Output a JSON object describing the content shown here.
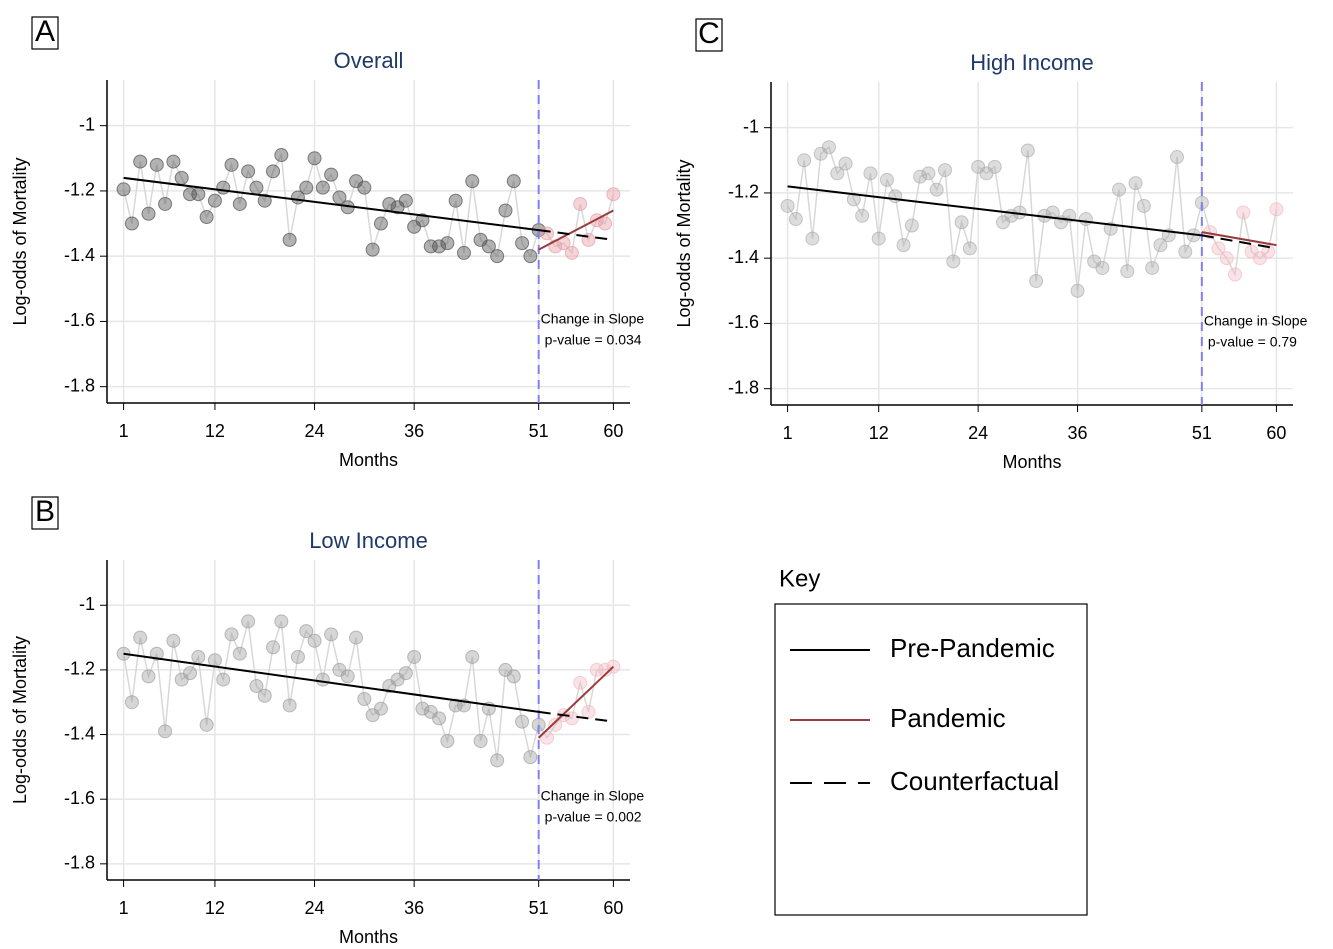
{
  "chart_data": [
    {
      "type": "line",
      "panel": "A",
      "title": "Overall",
      "x_label": "Months",
      "y_label": "Log-odds of Mortality",
      "xlim": [
        -1,
        62
      ],
      "ylim": [
        -1.85,
        -0.86
      ],
      "xticks": [
        1,
        12,
        24,
        36,
        51,
        60
      ],
      "yticks": [
        -1,
        -1.2,
        -1.4,
        -1.6,
        -1.8
      ],
      "grid": true,
      "interruption": 51,
      "point_color": "#555555",
      "pandemic_point_color": "#e8a0a8",
      "point_opacity": 0.45,
      "annotations": [
        "Change in Slope",
        "p-value = 0.034"
      ],
      "x": [
        1,
        2,
        3,
        4,
        5,
        6,
        7,
        8,
        9,
        10,
        11,
        12,
        13,
        14,
        15,
        16,
        17,
        18,
        19,
        20,
        21,
        22,
        23,
        24,
        25,
        26,
        27,
        28,
        29,
        30,
        31,
        32,
        33,
        34,
        35,
        36,
        37,
        38,
        39,
        40,
        41,
        42,
        43,
        44,
        45,
        46,
        47,
        48,
        49,
        50,
        51,
        52,
        53,
        54,
        55,
        56,
        57,
        58,
        59,
        60
      ],
      "values": [
        -1.195,
        -1.3,
        -1.11,
        -1.27,
        -1.12,
        -1.24,
        -1.11,
        -1.16,
        -1.21,
        -1.21,
        -1.28,
        -1.23,
        -1.19,
        -1.12,
        -1.24,
        -1.14,
        -1.19,
        -1.23,
        -1.14,
        -1.09,
        -1.35,
        -1.22,
        -1.19,
        -1.1,
        -1.19,
        -1.15,
        -1.22,
        -1.25,
        -1.17,
        -1.19,
        -1.38,
        -1.3,
        -1.24,
        -1.25,
        -1.23,
        -1.31,
        -1.29,
        -1.37,
        -1.37,
        -1.36,
        -1.23,
        -1.39,
        -1.17,
        -1.35,
        -1.37,
        -1.4,
        -1.26,
        -1.17,
        -1.36,
        -1.4,
        -1.32,
        -1.33,
        -1.37,
        -1.36,
        -1.39,
        -1.24,
        -1.35,
        -1.29,
        -1.3,
        -1.21
      ],
      "lines": [
        {
          "x": [
            1,
            51
          ],
          "values": [
            -1.16,
            -1.32
          ]
        },
        {
          "x": [
            51,
            60
          ],
          "values": [
            -1.38,
            -1.26
          ]
        },
        {
          "x": [
            51,
            60
          ],
          "values": [
            -1.32,
            -1.35
          ]
        }
      ]
    },
    {
      "type": "line",
      "panel": "B",
      "title": "Low Income",
      "x_label": "Months",
      "y_label": "Log-odds of Mortality",
      "xlim": [
        -1,
        62
      ],
      "ylim": [
        -1.85,
        -0.86
      ],
      "xticks": [
        1,
        12,
        24,
        36,
        51,
        60
      ],
      "yticks": [
        -1,
        -1.2,
        -1.4,
        -1.6,
        -1.8
      ],
      "grid": true,
      "interruption": 51,
      "point_color": "#999999",
      "pandemic_point_color": "#f0b8c0",
      "point_opacity": 0.4,
      "annotations": [
        "Change in Slope",
        "p-value = 0.002"
      ],
      "x": [
        1,
        2,
        3,
        4,
        5,
        6,
        7,
        8,
        9,
        10,
        11,
        12,
        13,
        14,
        15,
        16,
        17,
        18,
        19,
        20,
        21,
        22,
        23,
        24,
        25,
        26,
        27,
        28,
        29,
        30,
        31,
        32,
        33,
        34,
        35,
        36,
        37,
        38,
        39,
        40,
        41,
        42,
        43,
        44,
        45,
        46,
        47,
        48,
        49,
        50,
        51,
        52,
        53,
        54,
        55,
        56,
        57,
        58,
        59,
        60
      ],
      "values": [
        -1.15,
        -1.3,
        -1.1,
        -1.22,
        -1.15,
        -1.39,
        -1.11,
        -1.23,
        -1.21,
        -1.16,
        -1.37,
        -1.17,
        -1.23,
        -1.09,
        -1.15,
        -1.05,
        -1.25,
        -1.28,
        -1.13,
        -1.05,
        -1.31,
        -1.16,
        -1.08,
        -1.11,
        -1.23,
        -1.09,
        -1.2,
        -1.22,
        -1.1,
        -1.29,
        -1.34,
        -1.32,
        -1.25,
        -1.23,
        -1.21,
        -1.16,
        -1.32,
        -1.33,
        -1.35,
        -1.42,
        -1.31,
        -1.31,
        -1.16,
        -1.42,
        -1.32,
        -1.48,
        -1.2,
        -1.22,
        -1.36,
        -1.47,
        -1.37,
        -1.41,
        -1.37,
        -1.34,
        -1.35,
        -1.24,
        -1.33,
        -1.2,
        -1.2,
        -1.19
      ],
      "lines": [
        {
          "x": [
            1,
            51
          ],
          "values": [
            -1.15,
            -1.33
          ]
        },
        {
          "x": [
            51,
            60
          ],
          "values": [
            -1.41,
            -1.19
          ]
        },
        {
          "x": [
            51,
            60
          ],
          "values": [
            -1.33,
            -1.36
          ]
        }
      ]
    },
    {
      "type": "line",
      "panel": "C",
      "title": "High Income",
      "x_label": "Months",
      "y_label": "Log-odds of Mortality",
      "xlim": [
        -1,
        62
      ],
      "ylim": [
        -1.85,
        -0.86
      ],
      "xticks": [
        1,
        12,
        24,
        36,
        51,
        60
      ],
      "yticks": [
        -1,
        -1.2,
        -1.4,
        -1.6,
        -1.8
      ],
      "grid": true,
      "interruption": 51,
      "point_color": "#aaaaaa",
      "pandemic_point_color": "#f0b8c0",
      "point_opacity": 0.4,
      "annotations": [
        "Change in Slope",
        "p-value = 0.79"
      ],
      "x": [
        1,
        2,
        3,
        4,
        5,
        6,
        7,
        8,
        9,
        10,
        11,
        12,
        13,
        14,
        15,
        16,
        17,
        18,
        19,
        20,
        21,
        22,
        23,
        24,
        25,
        26,
        27,
        28,
        29,
        30,
        31,
        32,
        33,
        34,
        35,
        36,
        37,
        38,
        39,
        40,
        41,
        42,
        43,
        44,
        45,
        46,
        47,
        48,
        49,
        50,
        51,
        52,
        53,
        54,
        55,
        56,
        57,
        58,
        59,
        60
      ],
      "values": [
        -1.24,
        -1.28,
        -1.1,
        -1.34,
        -1.08,
        -1.06,
        -1.14,
        -1.11,
        -1.22,
        -1.27,
        -1.14,
        -1.34,
        -1.16,
        -1.21,
        -1.36,
        -1.3,
        -1.15,
        -1.14,
        -1.19,
        -1.13,
        -1.41,
        -1.29,
        -1.37,
        -1.12,
        -1.14,
        -1.12,
        -1.29,
        -1.27,
        -1.26,
        -1.07,
        -1.47,
        -1.27,
        -1.26,
        -1.29,
        -1.27,
        -1.5,
        -1.28,
        -1.41,
        -1.43,
        -1.31,
        -1.19,
        -1.44,
        -1.17,
        -1.24,
        -1.43,
        -1.36,
        -1.33,
        -1.09,
        -1.38,
        -1.33,
        -1.23,
        -1.32,
        -1.37,
        -1.4,
        -1.45,
        -1.26,
        -1.38,
        -1.4,
        -1.38,
        -1.25
      ],
      "lines": [
        {
          "x": [
            1,
            51
          ],
          "values": [
            -1.18,
            -1.33
          ]
        },
        {
          "x": [
            51,
            60
          ],
          "values": [
            -1.32,
            -1.36
          ]
        },
        {
          "x": [
            51,
            60
          ],
          "values": [
            -1.33,
            -1.37
          ]
        }
      ]
    }
  ],
  "legend": {
    "title": "Key",
    "entries": [
      {
        "name": "Pre-Pandemic",
        "color": "#000000",
        "dashed": false
      },
      {
        "name": "Pandemic",
        "color": "#9b3b3b",
        "dashed": false
      },
      {
        "name": "Counterfactual",
        "color": "#000000",
        "dashed": true
      }
    ]
  }
}
